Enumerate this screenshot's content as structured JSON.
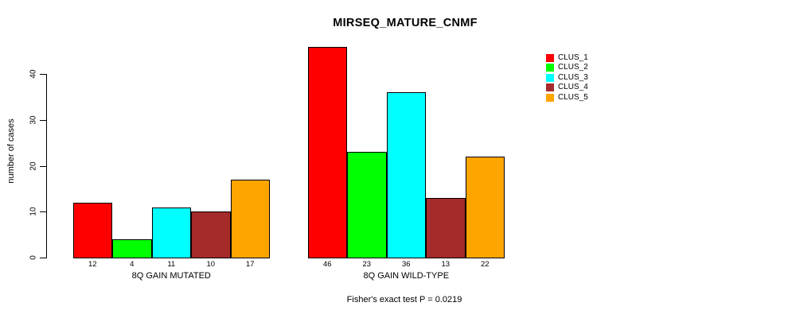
{
  "title": "MIRSEQ_MATURE_CNMF",
  "caption": "Fisher's exact test P = 0.0219",
  "chart_data": {
    "type": "bar",
    "title": "MIRSEQ_MATURE_CNMF",
    "ylabel": "number of cases",
    "xlabel": "",
    "yticks": [
      0,
      10,
      20,
      30,
      40
    ],
    "ylim": [
      0,
      46
    ],
    "grid": false,
    "legend_position": "right",
    "series_names": [
      "CLUS_1",
      "CLUS_2",
      "CLUS_3",
      "CLUS_4",
      "CLUS_5"
    ],
    "series_colors": [
      "#FF0000",
      "#00FF00",
      "#00FFFF",
      "#A52A2A",
      "#FFA500"
    ],
    "groups": [
      {
        "label": "8Q GAIN MUTATED",
        "values": [
          12,
          4,
          11,
          10,
          17
        ]
      },
      {
        "label": "8Q GAIN WILD-TYPE",
        "values": [
          46,
          23,
          36,
          13,
          22
        ]
      }
    ],
    "annotation": "Fisher's exact test P = 0.0219"
  }
}
